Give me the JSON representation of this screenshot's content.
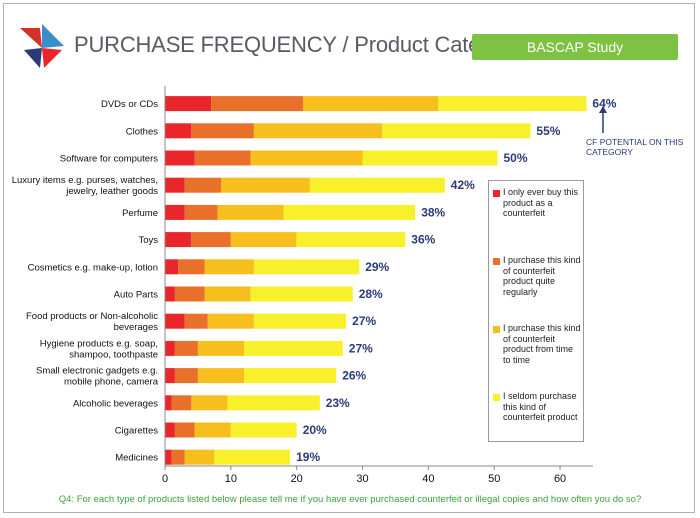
{
  "header": {
    "title": "PURCHASE FREQUENCY / Product Category",
    "badge": "BASCAP Study"
  },
  "colors": {
    "red": "#e8262b",
    "dark_orange": "#e8702a",
    "orange": "#f7bf1e",
    "yellow": "#f7f02a",
    "percent_text": "#2b3a7a",
    "badge": "#7dc242",
    "footnote": "#3aa335"
  },
  "chart_data": {
    "type": "bar",
    "orientation": "horizontal",
    "stacked": true,
    "title": "PURCHASE FREQUENCY / Product Category",
    "xlabel": "",
    "ylabel": "",
    "xlim": [
      0,
      65
    ],
    "xticks": [
      0,
      10,
      20,
      30,
      40,
      50,
      60
    ],
    "categories": [
      "DVDs or CDs",
      "Clothes",
      "Software for computers",
      "Luxury items e.g. purses, watches, jewelry, leather goods",
      "Perfume",
      "Toys",
      "Cosmetics e.g. make-up, lotion",
      "Auto Parts",
      "Food products or Non-alcoholic beverages",
      "Hygiene products e.g. soap, shampoo, toothpaste",
      "Small electronic gadgets e.g. mobile phone, camera",
      "Alcoholic beverages",
      "Cigarettes",
      "Medicines"
    ],
    "series": [
      {
        "name": "I only ever buy this product as a counterfeit",
        "color": "#e8262b",
        "values": [
          7,
          4,
          4.5,
          3,
          3,
          4,
          2,
          1.5,
          3,
          1.5,
          1.5,
          1,
          1.5,
          1
        ]
      },
      {
        "name": "I purchase this kind of counterfeit product quite regularly",
        "color": "#e8702a",
        "values": [
          14,
          9.5,
          8.5,
          5.5,
          5,
          6,
          4,
          4.5,
          3.5,
          3.5,
          3.5,
          3,
          3,
          2
        ]
      },
      {
        "name": "I purchase this kind of counterfeit product from time to time",
        "color": "#f7bf1e",
        "values": [
          20.5,
          19.5,
          17,
          13.5,
          10,
          10,
          7.5,
          7,
          7,
          7,
          7,
          5.5,
          5.5,
          4.5
        ]
      },
      {
        "name": "I seldom purchase this kind of counterfeit product",
        "color": "#f7f02a",
        "values": [
          22.5,
          22.5,
          20.5,
          20.5,
          20,
          16.5,
          16,
          15.5,
          14,
          15,
          14,
          14,
          10,
          11.5
        ]
      }
    ],
    "totals_labels": [
      "64%",
      "55%",
      "50%",
      "42%",
      "38%",
      "36%",
      "29%",
      "28%",
      "27%",
      "27%",
      "26%",
      "23%",
      "20%",
      "19%"
    ],
    "legend_position": "right",
    "annotation": "CF POTENTIAL ON THIS CATEGORY"
  },
  "footnote": "Q4: For each type of products listed below please tell me if you have ever purchased counterfeit or illegal copies and how often you do so?"
}
